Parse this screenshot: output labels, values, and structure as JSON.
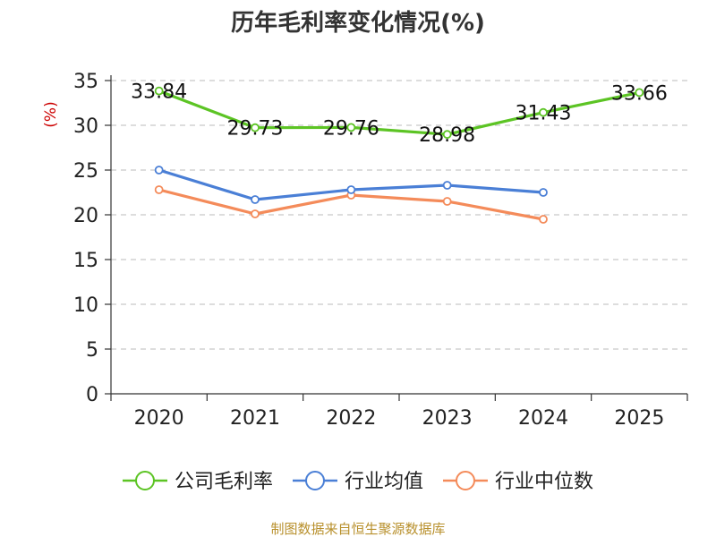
{
  "chart_data": {
    "type": "line",
    "title": "历年毛利率变化情况(%)",
    "ylabel": "(%)",
    "xlabel": "",
    "categories": [
      "2020",
      "2021",
      "2022",
      "2023",
      "2024",
      "2025"
    ],
    "ylim": [
      0,
      35
    ],
    "yticks": [
      0,
      5,
      10,
      15,
      20,
      25,
      30,
      35
    ],
    "grid": true,
    "legend_position": "bottom",
    "series": [
      {
        "name": "公司毛利率",
        "color": "#5cc424",
        "values": [
          33.84,
          29.73,
          29.76,
          28.98,
          31.43,
          33.66
        ],
        "show_labels": true
      },
      {
        "name": "行业均值",
        "color": "#4a7fd6",
        "values": [
          25.0,
          21.7,
          22.8,
          23.3,
          22.5,
          null
        ],
        "show_labels": false
      },
      {
        "name": "行业中位数",
        "color": "#f48b5a",
        "values": [
          22.8,
          20.1,
          22.2,
          21.5,
          19.5,
          null
        ],
        "show_labels": false
      }
    ],
    "source": "制图数据来自恒生聚源数据库"
  }
}
